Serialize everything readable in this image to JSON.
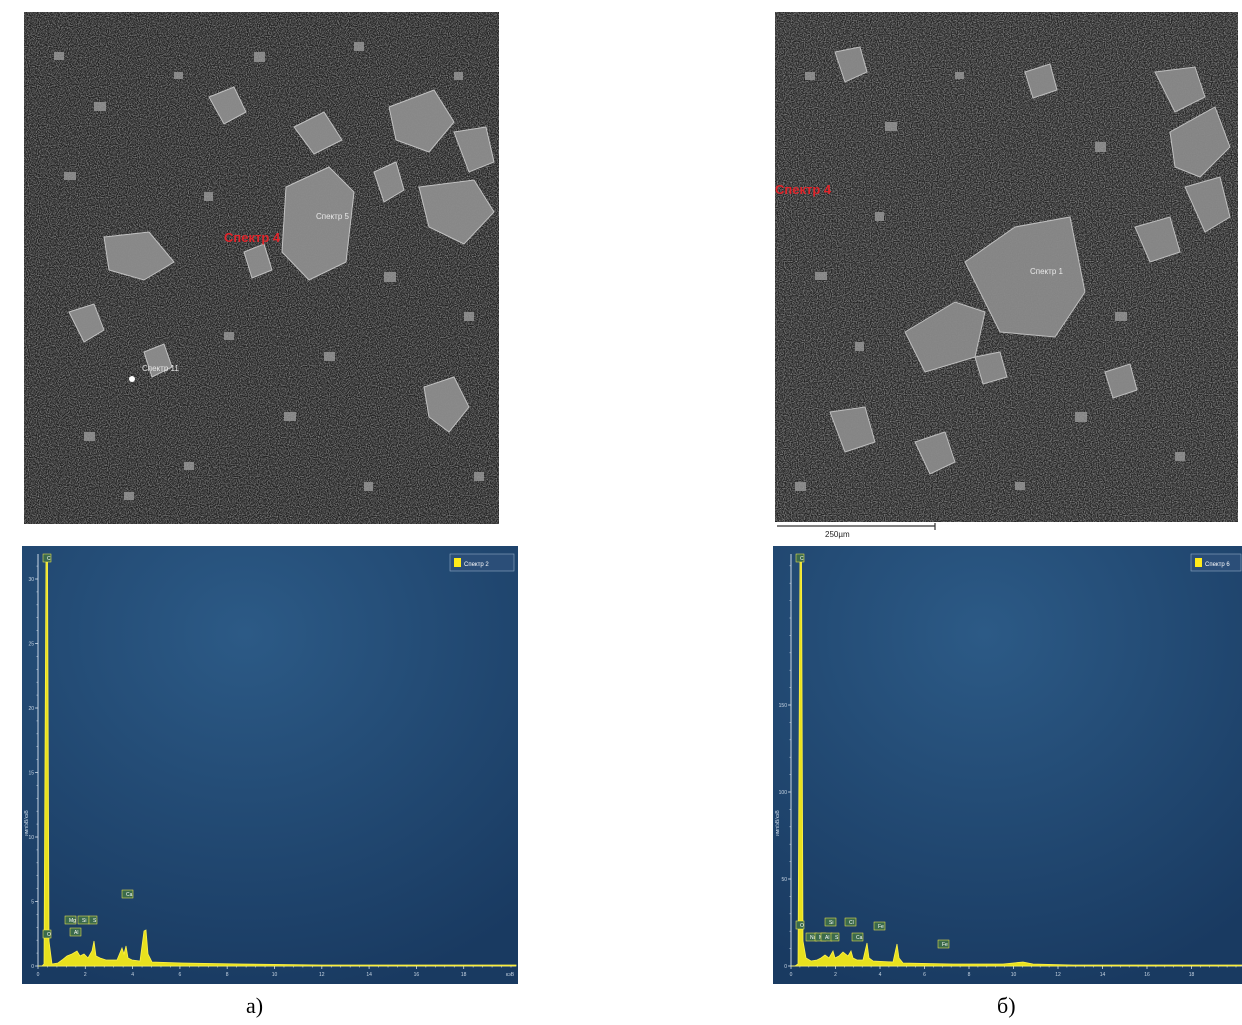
{
  "figure": {
    "panels": [
      {
        "id": "a",
        "caption": "а)",
        "sem": {
          "labels": [
            {
              "text": "Спектр 4",
              "color": "#e0252b"
            },
            {
              "text": "Спектр 5",
              "color": "#e8e8e8"
            },
            {
              "text": "Спектр 11",
              "color": "#e8e8e8"
            }
          ]
        },
        "spectrum": {
          "legend": "Спектр 2",
          "ylabel": "имп/эВ/кэВ",
          "yticks": [
            "0",
            "5",
            "10",
            "15",
            "20",
            "25",
            "30"
          ],
          "xticks": [
            "0",
            "2",
            "4",
            "6",
            "8",
            "10",
            "12",
            "14",
            "16",
            "18"
          ],
          "xunit": "кэВ",
          "peaks": [
            "C",
            "O",
            "Mg",
            "Al",
            "Si",
            "S",
            "Ca"
          ]
        }
      },
      {
        "id": "b",
        "caption": "б)",
        "sem": {
          "scalebar": "250µm",
          "labels": [
            {
              "text": "Спектр 4",
              "color": "#e0252b"
            },
            {
              "text": "Спектр 1",
              "color": "#e8e8e8"
            }
          ]
        },
        "spectrum": {
          "legend": "Спектр 6",
          "ylabel": "имп/эВ/кэВ",
          "yticks": [
            "0",
            "50",
            "100",
            "150"
          ],
          "xticks": [
            "0",
            "2",
            "4",
            "6",
            "8",
            "10",
            "12",
            "14",
            "16",
            "18"
          ],
          "peaks": [
            "C",
            "O",
            "Na",
            "Mg",
            "Al",
            "Si",
            "S",
            "Cl",
            "Ca",
            "Fe",
            "Fe"
          ]
        }
      }
    ]
  }
}
